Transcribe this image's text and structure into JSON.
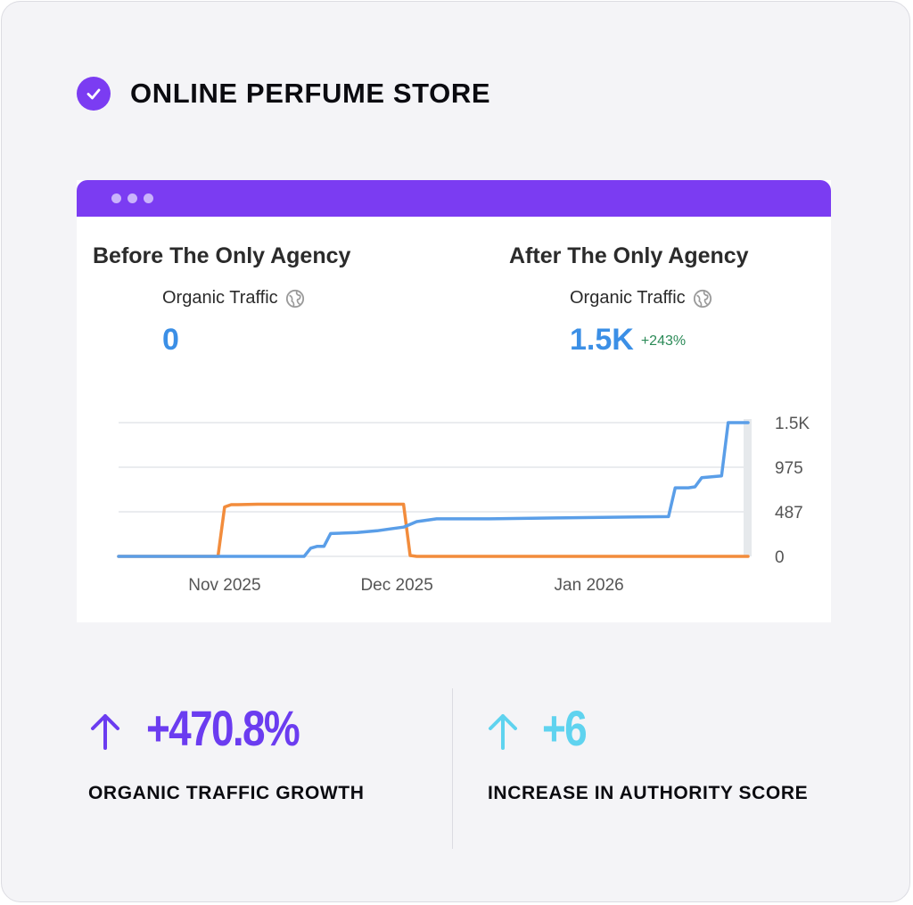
{
  "header": {
    "title": "ONLINE PERFUME STORE",
    "icon": "check-circle-icon",
    "accent": "#7b3cf2"
  },
  "browser": {
    "bar_color": "#7b3cf2",
    "before": {
      "heading": "Before The Only Agency",
      "metric_label": "Organic Traffic",
      "metric_value": "0"
    },
    "after": {
      "heading": "After The Only Agency",
      "metric_label": "Organic Traffic",
      "metric_value": "1.5K",
      "metric_delta": "+243%"
    }
  },
  "chart_data": {
    "type": "line",
    "x_ticks": [
      "Nov 2025",
      "Dec 2025",
      "Jan 2026"
    ],
    "y_ticks": [
      "0",
      "487",
      "975",
      "1.5K"
    ],
    "ylim": [
      0,
      1462
    ],
    "grid": true,
    "series": [
      {
        "color": "#f28c3c",
        "points": [
          [
            "2025-10-25",
            0
          ],
          [
            "2025-11-09",
            0
          ],
          [
            "2025-11-10",
            540
          ],
          [
            "2025-11-11",
            565
          ],
          [
            "2025-11-12",
            565
          ],
          [
            "2025-11-15",
            570
          ],
          [
            "2025-11-25",
            570
          ],
          [
            "2025-12-05",
            570
          ],
          [
            "2025-12-07",
            570
          ],
          [
            "2025-12-08",
            10
          ],
          [
            "2025-12-09",
            0
          ],
          [
            "2026-01-28",
            0
          ]
        ]
      },
      {
        "color": "#5a9ee8",
        "points": [
          [
            "2025-10-25",
            0
          ],
          [
            "2025-11-22",
            0
          ],
          [
            "2025-11-23",
            90
          ],
          [
            "2025-11-24",
            110
          ],
          [
            "2025-11-25",
            110
          ],
          [
            "2025-11-26",
            250
          ],
          [
            "2025-11-30",
            260
          ],
          [
            "2025-12-03",
            280
          ],
          [
            "2025-12-05",
            300
          ],
          [
            "2025-12-07",
            320
          ],
          [
            "2025-12-09",
            380
          ],
          [
            "2025-12-12",
            410
          ],
          [
            "2025-12-20",
            410
          ],
          [
            "2025-12-30",
            420
          ],
          [
            "2026-01-10",
            430
          ],
          [
            "2026-01-16",
            435
          ],
          [
            "2026-01-17",
            750
          ],
          [
            "2026-01-19",
            750
          ],
          [
            "2026-01-20",
            760
          ],
          [
            "2026-01-21",
            860
          ],
          [
            "2026-01-24",
            880
          ],
          [
            "2026-01-25",
            1462
          ],
          [
            "2026-01-28",
            1462
          ]
        ]
      }
    ]
  },
  "stats": [
    {
      "value": "+470.8%",
      "caption": "ORGANIC TRAFFIC GROWTH",
      "color": "#6b3cf0",
      "icon": "arrow-up-icon"
    },
    {
      "value": "+6",
      "caption": "INCREASE IN AUTHORITY SCORE",
      "color": "#5fd3ef",
      "icon": "arrow-up-icon"
    }
  ]
}
